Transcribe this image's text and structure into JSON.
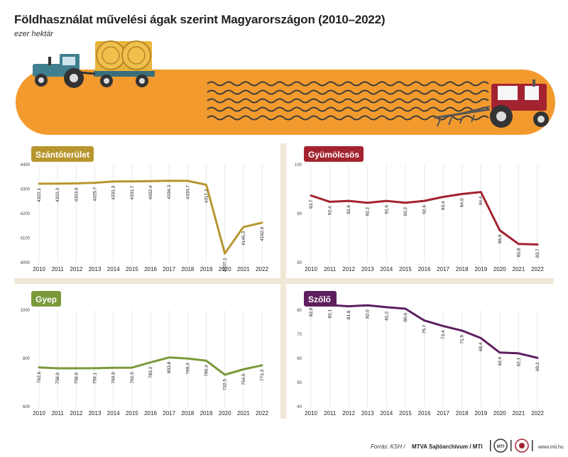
{
  "title": "Földhasználat művelési ágak szerint Magyarországon (2010–2022)",
  "subtitle": "ezer hektár",
  "chart_data": [
    {
      "type": "line",
      "title": "Szántóterület",
      "color": "#b8962e",
      "x": [
        "2010",
        "2011",
        "2012",
        "2013",
        "2014",
        "2015",
        "2016",
        "2017",
        "2018",
        "2019",
        "2020",
        "2021",
        "2022"
      ],
      "values": [
        4322.1,
        4322.3,
        4323.6,
        4325.7,
        4331.3,
        4331.7,
        4332.4,
        4334.3,
        4333.7,
        4317.7,
        4037.1,
        4145.3,
        4162.9
      ],
      "labels": [
        "4322,1",
        "4322,3",
        "4323,6",
        "4325,7",
        "4331,3",
        "4331,7",
        "4332,4",
        "4334,3",
        "4333,7",
        "4317,7",
        "4037,1",
        "4145,3",
        "4162,9"
      ],
      "ylim": [
        4000,
        4400
      ],
      "yticks": [
        "4000",
        "4100",
        "4200",
        "4300",
        "4400"
      ],
      "grid": true
    },
    {
      "type": "line",
      "title": "Gyümölcsös",
      "color": "#a32330",
      "x": [
        "2010",
        "2011",
        "2012",
        "2013",
        "2014",
        "2015",
        "2016",
        "2017",
        "2018",
        "2019",
        "2020",
        "2021",
        "2022"
      ],
      "values": [
        93.7,
        92.4,
        92.6,
        92.2,
        92.6,
        92.2,
        92.6,
        93.4,
        94.0,
        94.4,
        86.6,
        83.8,
        83.7
      ],
      "labels": [
        "93,7",
        "92,4",
        "92,6",
        "92,2",
        "92,6",
        "92,2",
        "92,6",
        "93,4",
        "94,0",
        "94,4",
        "86,6",
        "83,8",
        "83,7"
      ],
      "ylim": [
        80,
        100
      ],
      "yticks": [
        "80",
        "90",
        "100"
      ],
      "grid": true
    },
    {
      "type": "line",
      "title": "Gyep",
      "color": "#7a9a3a",
      "x": [
        "2010",
        "2011",
        "2012",
        "2013",
        "2014",
        "2015",
        "2016",
        "2017",
        "2018",
        "2019",
        "2020",
        "2021",
        "2022"
      ],
      "values": [
        762.6,
        758.9,
        758.9,
        759.1,
        760.9,
        761.5,
        783.2,
        803.8,
        799.3,
        790.4,
        732.5,
        754.5,
        771.3
      ],
      "labels": [
        "762,6",
        "758,9",
        "758,9",
        "759,1",
        "760,9",
        "761,5",
        "783,2",
        "803,8",
        "799,3",
        "790,4",
        "732,5",
        "754,5",
        "771,3"
      ],
      "ylim": [
        600,
        1000
      ],
      "yticks": [
        "600",
        "800",
        "1000"
      ],
      "grid": true
    },
    {
      "type": "line",
      "title": "Szőlő",
      "color": "#5e1f5e",
      "x": [
        "2010",
        "2011",
        "2012",
        "2013",
        "2014",
        "2015",
        "2016",
        "2017",
        "2018",
        "2019",
        "2020",
        "2021",
        "2022"
      ],
      "values": [
        82.8,
        82.1,
        81.6,
        82.0,
        81.2,
        80.6,
        75.7,
        73.4,
        71.5,
        68.4,
        62.4,
        62.1,
        60.2
      ],
      "labels": [
        "82,8",
        "82,1",
        "81,6",
        "82,0",
        "81,2",
        "80,6",
        "75,7",
        "73,4",
        "71,5",
        "68,4",
        "62,4",
        "62,1",
        "60,2"
      ],
      "ylim": [
        40,
        80
      ],
      "yticks": [
        "40",
        "50",
        "60",
        "70",
        "80"
      ],
      "grid": true
    }
  ],
  "footer": {
    "source": "Forrás: KSH /",
    "brand": "MTVA Sajtóarchívum / MTI",
    "site": "www.mti.hu",
    "logo_text": "MTI"
  },
  "colors": {
    "banner": "#f39a2e",
    "tractor_left": "#3f7f8f",
    "tractor_right": "#a32330",
    "separator": "#efe8d6"
  }
}
